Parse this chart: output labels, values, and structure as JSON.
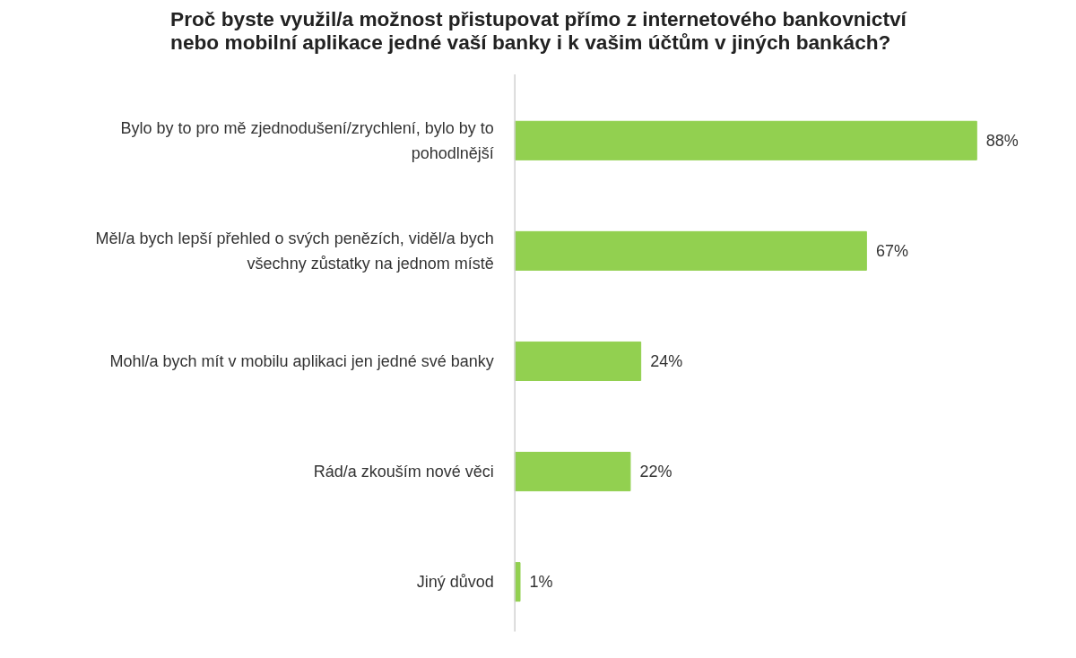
{
  "chart_data": {
    "type": "bar",
    "orientation": "horizontal",
    "title": "Proč byste využil/a možnost přistupovat přímo z internetového bankovnictví nebo mobilní aplikace jedné vaší banky i k vašim účtům v jiných bankách?",
    "categories": [
      "Bylo by to pro mě zjednodušení/zrychlení, bylo by to pohodlnější",
      "Měl/a bych lepší přehled o svých penězích, viděl/a bych všechny zůstatky na jednom místě",
      "Mohl/a bych mít v mobilu aplikaci jen jedné své banky",
      "Rád/a zkouším nové věci",
      "Jiný důvod"
    ],
    "values": [
      88,
      67,
      24,
      22,
      1
    ],
    "color": "#92d050",
    "value_labels": [
      "88%",
      "67%",
      "24%",
      "22%",
      "1%"
    ]
  }
}
